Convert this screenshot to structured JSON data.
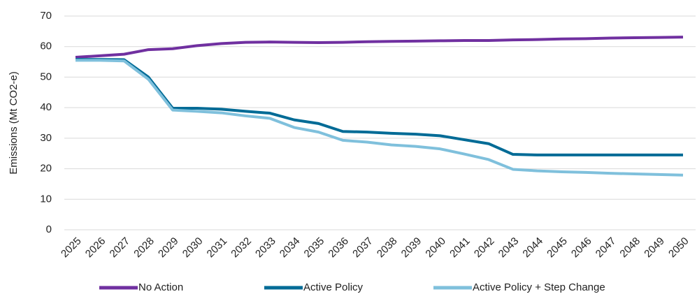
{
  "chart_data": {
    "type": "line",
    "y_label": "Emissions (Mt CO2-e)",
    "categories": [
      "2025",
      "2026",
      "2027",
      "2028",
      "2029",
      "2030",
      "2031",
      "2032",
      "2033",
      "2034",
      "2035",
      "2036",
      "2037",
      "2038",
      "2039",
      "2040",
      "2041",
      "2042",
      "2043",
      "2044",
      "2045",
      "2046",
      "2047",
      "2048",
      "2049",
      "2050"
    ],
    "series": [
      {
        "name": "No Action",
        "color": "#7030a0",
        "values": [
          56.5,
          57,
          57.5,
          59,
          59.3,
          60.3,
          61,
          61.4,
          61.5,
          61.4,
          61.3,
          61.4,
          61.6,
          61.7,
          61.8,
          61.9,
          62,
          62,
          62.2,
          62.3,
          62.5,
          62.6,
          62.8,
          62.9,
          63,
          63.1
        ]
      },
      {
        "name": "Active Policy",
        "color": "#006b96",
        "values": [
          55.8,
          55.8,
          55.7,
          50,
          39.8,
          39.8,
          39.5,
          38.8,
          38.2,
          36,
          34.8,
          32.2,
          32,
          31.6,
          31.3,
          30.8,
          29.5,
          28.2,
          24.7,
          24.5,
          24.5,
          24.5,
          24.5,
          24.5,
          24.5,
          24.5
        ]
      },
      {
        "name": "Active Policy + Step Change",
        "color": "#7fc0dc",
        "values": [
          55.5,
          55.5,
          55.3,
          49.3,
          39.2,
          38.8,
          38.3,
          37.3,
          36.5,
          33.5,
          32,
          29.3,
          28.7,
          27.8,
          27.3,
          26.5,
          24.8,
          23,
          19.8,
          19.3,
          19,
          18.8,
          18.5,
          18.3,
          18.1,
          17.9
        ]
      }
    ],
    "ylim": [
      0,
      70
    ],
    "yticks": [
      0,
      10,
      20,
      30,
      40,
      50,
      60,
      70
    ],
    "grid": true,
    "legend": "bottom"
  }
}
